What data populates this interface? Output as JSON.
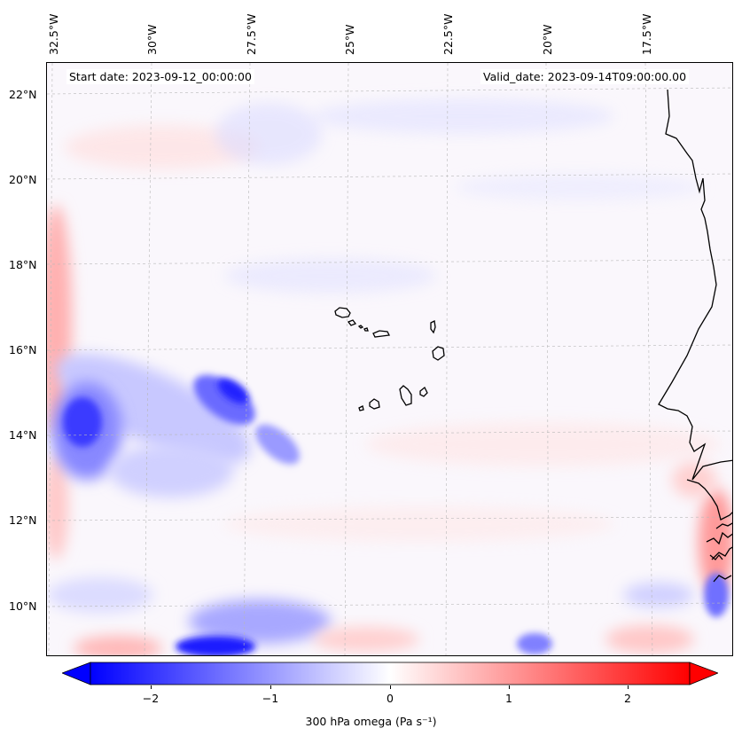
{
  "header": {
    "start_date": "Start date: 2023-09-12_00:00:00",
    "valid_date": "Valid_date: 2023-09-14T09:00:00.00"
  },
  "axes": {
    "lon_labels": [
      "32.5°W",
      "30°W",
      "27.5°W",
      "25°W",
      "22.5°W",
      "20°W",
      "17.5°W"
    ],
    "lat_labels": [
      "22°N",
      "20°N",
      "18°N",
      "16°N",
      "14°N",
      "12°N",
      "10°N"
    ]
  },
  "colorbar": {
    "label": "300 hPa omega (Pa s⁻¹)",
    "ticks": [
      "−2",
      "−1",
      "0",
      "1",
      "2"
    ],
    "range": [
      -2.5,
      2.5
    ],
    "cmap": "bwr"
  },
  "colors": {
    "negative": "#0000ff",
    "positive": "#ff0000",
    "coast": "#000000"
  }
}
